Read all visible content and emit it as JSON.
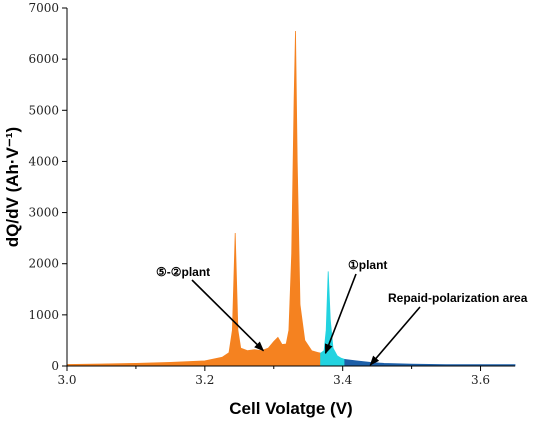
{
  "chart_data": {
    "type": "area",
    "xlabel": "Cell Volatge (V)",
    "ylabel": "dQ/dV (Ah·V⁻¹)",
    "xlim": [
      3.0,
      3.65
    ],
    "ylim": [
      0,
      7000
    ],
    "x_ticks": [
      "3.0",
      "3.2",
      "3.4",
      "3.6"
    ],
    "y_ticks": [
      "0",
      "1000",
      "2000",
      "3000",
      "4000",
      "5000",
      "6000",
      "7000"
    ],
    "grid": false,
    "legend": "none",
    "series": [
      {
        "color": "#f58220",
        "points": [
          [
            3.0,
            30
          ],
          [
            3.05,
            40
          ],
          [
            3.1,
            50
          ],
          [
            3.15,
            70
          ],
          [
            3.2,
            100
          ],
          [
            3.225,
            170
          ],
          [
            3.235,
            260
          ],
          [
            3.24,
            700
          ],
          [
            3.244,
            2600
          ],
          [
            3.248,
            700
          ],
          [
            3.252,
            350
          ],
          [
            3.262,
            300
          ],
          [
            3.272,
            320
          ],
          [
            3.282,
            300
          ],
          [
            3.292,
            350
          ],
          [
            3.3,
            480
          ],
          [
            3.306,
            560
          ],
          [
            3.312,
            420
          ],
          [
            3.318,
            430
          ],
          [
            3.322,
            700
          ],
          [
            3.326,
            2200
          ],
          [
            3.3295,
            5200
          ],
          [
            3.3315,
            6550
          ],
          [
            3.334,
            4000
          ],
          [
            3.338,
            1200
          ],
          [
            3.345,
            500
          ],
          [
            3.355,
            300
          ],
          [
            3.365,
            260
          ],
          [
            3.368,
            250
          ]
        ]
      },
      {
        "color": "#22d3e0",
        "points": [
          [
            3.368,
            250
          ],
          [
            3.373,
            300
          ],
          [
            3.376,
            700
          ],
          [
            3.379,
            1850
          ],
          [
            3.382,
            900
          ],
          [
            3.386,
            350
          ],
          [
            3.392,
            200
          ],
          [
            3.398,
            150
          ],
          [
            3.403,
            130
          ]
        ]
      },
      {
        "color": "#1c5fa8",
        "points": [
          [
            3.403,
            130
          ],
          [
            3.42,
            100
          ],
          [
            3.44,
            70
          ],
          [
            3.46,
            50
          ],
          [
            3.5,
            35
          ],
          [
            3.55,
            28
          ],
          [
            3.6,
            25
          ],
          [
            3.65,
            25
          ]
        ]
      }
    ],
    "annotations": [
      {
        "text": "⑤-②plant",
        "arrow_to": [
          3.285,
          300
        ]
      },
      {
        "text": "①plant",
        "arrow_to": [
          3.375,
          250
        ]
      },
      {
        "text": "Repaid-polarization area",
        "arrow_to": [
          3.44,
          20
        ]
      }
    ]
  }
}
